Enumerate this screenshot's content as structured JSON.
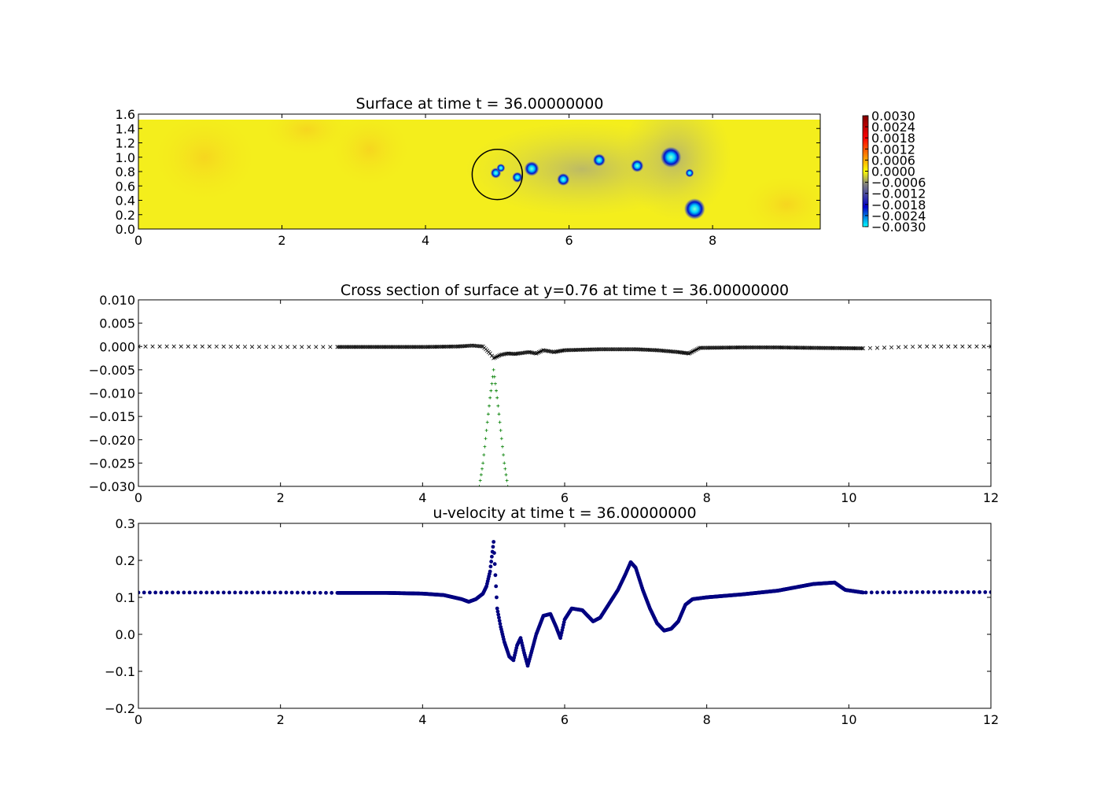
{
  "chart_data": [
    {
      "type": "heatmap",
      "title": "Surface at time t =    36.00000000",
      "xlim": [
        0,
        9.5
      ],
      "ylim": [
        0,
        1.6
      ],
      "x_ticks": [
        "0",
        "2",
        "4",
        "6",
        "8"
      ],
      "y_ticks": [
        "0.0",
        "0.2",
        "0.4",
        "0.6",
        "0.8",
        "1.0",
        "1.2",
        "1.4",
        "1.6"
      ],
      "domain_y_max": 1.52,
      "colorbar": {
        "ticks": [
          "0.0030",
          "0.0024",
          "0.0018",
          "0.0012",
          "0.0006",
          "0.0000",
          "−0.0006",
          "−0.0012",
          "−0.0018",
          "−0.0024",
          "−0.0030"
        ],
        "colors": [
          "#00ffff",
          "#0000c8",
          "#808080",
          "#ffff00",
          "#ff0000",
          "#800000"
        ]
      },
      "background_color": "#f4ee1c",
      "vortices": [
        {
          "x": 4.98,
          "y": 0.78,
          "r": 0.05
        },
        {
          "x": 5.05,
          "y": 0.85,
          "r": 0.04
        },
        {
          "x": 5.28,
          "y": 0.72,
          "r": 0.05
        },
        {
          "x": 5.48,
          "y": 0.84,
          "r": 0.07
        },
        {
          "x": 5.92,
          "y": 0.69,
          "r": 0.06
        },
        {
          "x": 6.42,
          "y": 0.96,
          "r": 0.06
        },
        {
          "x": 6.95,
          "y": 0.88,
          "r": 0.06
        },
        {
          "x": 7.42,
          "y": 1.0,
          "r": 0.1
        },
        {
          "x": 7.68,
          "y": 0.78,
          "r": 0.04
        },
        {
          "x": 7.75,
          "y": 0.28,
          "r": 0.1
        }
      ],
      "circle": {
        "x": 5.0,
        "y": 0.76,
        "r": 0.35
      }
    },
    {
      "type": "scatter",
      "title": "Cross section of surface at y=0.76 at time t =    36.00000000",
      "xlim": [
        0,
        12
      ],
      "ylim": [
        -0.03,
        0.01
      ],
      "x_ticks": [
        "0",
        "2",
        "4",
        "6",
        "8",
        "10",
        "12"
      ],
      "y_ticks": [
        "0.010",
        "0.005",
        "0.000",
        "−0.005",
        "−0.010",
        "−0.015",
        "−0.020",
        "−0.025",
        "−0.030"
      ],
      "series": [
        {
          "marker": "x",
          "color": "#000000",
          "points": [
            [
              0,
              0.0
            ],
            [
              1.0,
              0.0
            ],
            [
              2.0,
              -0.0001
            ],
            [
              2.8,
              -0.0001
            ],
            [
              3.5,
              -0.0001
            ],
            [
              4.0,
              -0.0001
            ],
            [
              4.5,
              0.0
            ],
            [
              4.7,
              0.0002
            ],
            [
              4.85,
              0.0
            ],
            [
              4.95,
              -0.0015
            ],
            [
              5.0,
              -0.0025
            ],
            [
              5.1,
              -0.0018
            ],
            [
              5.2,
              -0.0015
            ],
            [
              5.3,
              -0.0016
            ],
            [
              5.4,
              -0.0014
            ],
            [
              5.5,
              -0.0012
            ],
            [
              5.6,
              -0.0015
            ],
            [
              5.7,
              -0.0008
            ],
            [
              5.85,
              -0.0012
            ],
            [
              6.0,
              -0.0008
            ],
            [
              6.5,
              -0.0006
            ],
            [
              7.0,
              -0.0006
            ],
            [
              7.3,
              -0.0008
            ],
            [
              7.6,
              -0.0012
            ],
            [
              7.75,
              -0.0015
            ],
            [
              7.9,
              -0.0003
            ],
            [
              8.5,
              -0.0002
            ],
            [
              9.0,
              -0.0002
            ],
            [
              9.5,
              -0.0003
            ],
            [
              10.2,
              -0.0004
            ],
            [
              11.0,
              0.0
            ],
            [
              12.0,
              0.0
            ]
          ]
        },
        {
          "marker": "+",
          "color": "#007f00",
          "points": [
            [
              4.8,
              -0.03
            ],
            [
              4.85,
              -0.025
            ],
            [
              4.9,
              -0.018
            ],
            [
              4.95,
              -0.011
            ],
            [
              5.0,
              -0.005
            ],
            [
              5.05,
              -0.011
            ],
            [
              5.1,
              -0.018
            ],
            [
              5.15,
              -0.025
            ],
            [
              5.2,
              -0.03
            ]
          ]
        }
      ]
    },
    {
      "type": "scatter",
      "title": "u-velocity at time t =    36.00000000",
      "xlim": [
        0,
        12
      ],
      "ylim": [
        -0.2,
        0.3
      ],
      "x_ticks": [
        "0",
        "2",
        "4",
        "6",
        "8",
        "10",
        "12"
      ],
      "y_ticks": [
        "0.3",
        "0.2",
        "0.1",
        "0.0",
        "−0.1",
        "−0.2"
      ],
      "series": [
        {
          "marker": "o",
          "color": "#000080",
          "points": [
            [
              0,
              0.113
            ],
            [
              1.0,
              0.113
            ],
            [
              2.0,
              0.113
            ],
            [
              2.8,
              0.112
            ],
            [
              3.5,
              0.112
            ],
            [
              4.0,
              0.11
            ],
            [
              4.3,
              0.106
            ],
            [
              4.55,
              0.095
            ],
            [
              4.65,
              0.088
            ],
            [
              4.75,
              0.095
            ],
            [
              4.85,
              0.11
            ],
            [
              4.9,
              0.13
            ],
            [
              4.95,
              0.17
            ],
            [
              5.0,
              0.25
            ],
            [
              5.05,
              0.07
            ],
            [
              5.1,
              0.02
            ],
            [
              5.15,
              -0.02
            ],
            [
              5.22,
              -0.06
            ],
            [
              5.28,
              -0.07
            ],
            [
              5.33,
              -0.03
            ],
            [
              5.38,
              -0.01
            ],
            [
              5.43,
              -0.05
            ],
            [
              5.48,
              -0.085
            ],
            [
              5.53,
              -0.05
            ],
            [
              5.6,
              0.0
            ],
            [
              5.7,
              0.05
            ],
            [
              5.8,
              0.055
            ],
            [
              5.88,
              0.02
            ],
            [
              5.94,
              -0.01
            ],
            [
              6.0,
              0.04
            ],
            [
              6.1,
              0.07
            ],
            [
              6.25,
              0.065
            ],
            [
              6.4,
              0.035
            ],
            [
              6.5,
              0.045
            ],
            [
              6.6,
              0.075
            ],
            [
              6.75,
              0.12
            ],
            [
              6.85,
              0.16
            ],
            [
              6.93,
              0.195
            ],
            [
              7.0,
              0.18
            ],
            [
              7.1,
              0.12
            ],
            [
              7.2,
              0.07
            ],
            [
              7.3,
              0.03
            ],
            [
              7.4,
              0.01
            ],
            [
              7.5,
              0.015
            ],
            [
              7.6,
              0.035
            ],
            [
              7.7,
              0.08
            ],
            [
              7.8,
              0.095
            ],
            [
              8.0,
              0.1
            ],
            [
              8.5,
              0.108
            ],
            [
              9.0,
              0.118
            ],
            [
              9.5,
              0.136
            ],
            [
              9.8,
              0.14
            ],
            [
              9.95,
              0.12
            ],
            [
              10.2,
              0.113
            ],
            [
              11.0,
              0.114
            ],
            [
              12.0,
              0.114
            ]
          ]
        }
      ]
    }
  ]
}
